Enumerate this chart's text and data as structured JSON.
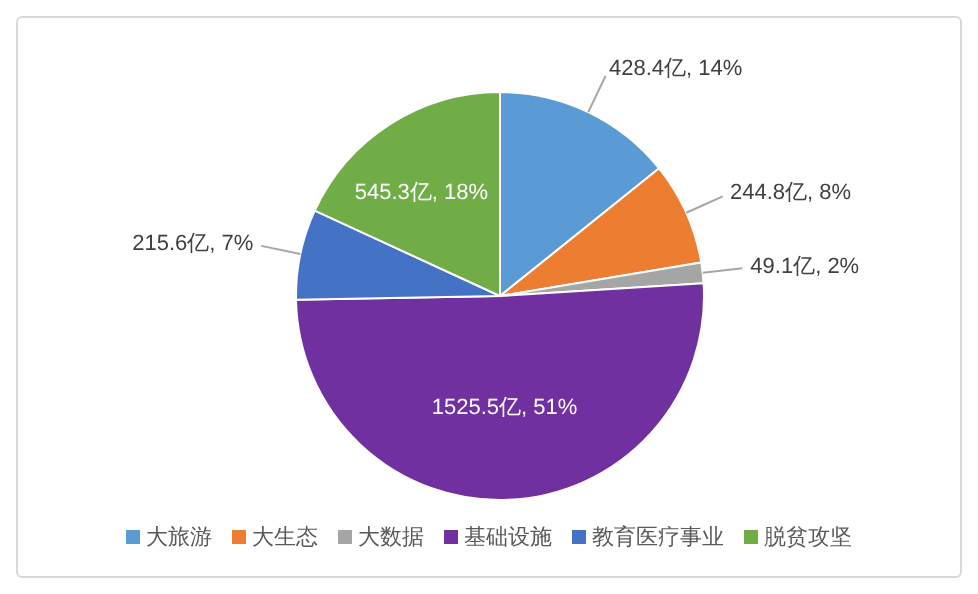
{
  "chart_data": {
    "type": "pie",
    "categories": [
      "大旅游",
      "大生态",
      "大数据",
      "基础设施",
      "教育医疗事业",
      "脱贫攻坚"
    ],
    "values": [
      428.4,
      244.8,
      49.1,
      1525.5,
      215.6,
      545.3
    ],
    "colors": [
      "#5b9bd5",
      "#ed7d31",
      "#a5a5a5",
      "#7030a0",
      "#4472c4",
      "#70ad47"
    ],
    "value_labels": [
      "428.4亿, 14%",
      "244.8亿, 8%",
      "49.1亿, 2%",
      "1525.5亿, 51%",
      "215.6亿, 7%",
      "545.3亿, 18%"
    ],
    "legend": "bottom"
  }
}
